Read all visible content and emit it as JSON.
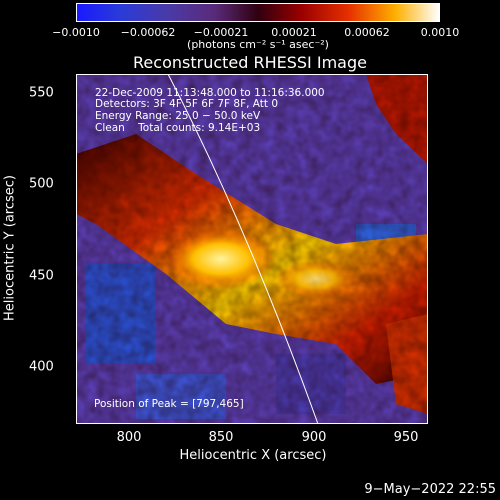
{
  "colorbar": {
    "ticks": [
      "−0.0010",
      "−0.00062",
      "−0.00021",
      "0.00021",
      "0.00062",
      "0.0010"
    ],
    "units": "(photons cm⁻² s⁻¹ asec⁻²)"
  },
  "image": {
    "title": "Reconstructed RHESSI Image",
    "annotation": {
      "time": "22-Dec-2009 11:13:48.000 to 11:16:36.000",
      "detectors": "Detectors: 3F 4F 5F 6F 7F 8F, Att 0",
      "energy": "Energy Range: 25.0 − 50.0 keV",
      "clean": "Clean    Total counts: 9.14E+03"
    },
    "peak": "Position of Peak = [797,465]",
    "xlabel": "Heliocentric X (arcsec)",
    "ylabel": "Heliocentric Y (arcsec)",
    "xticks": [
      "800",
      "850",
      "900",
      "950"
    ],
    "yticks": [
      "550",
      "500",
      "450",
      "400"
    ]
  },
  "timestamp": "9−May−2022 22:55"
}
